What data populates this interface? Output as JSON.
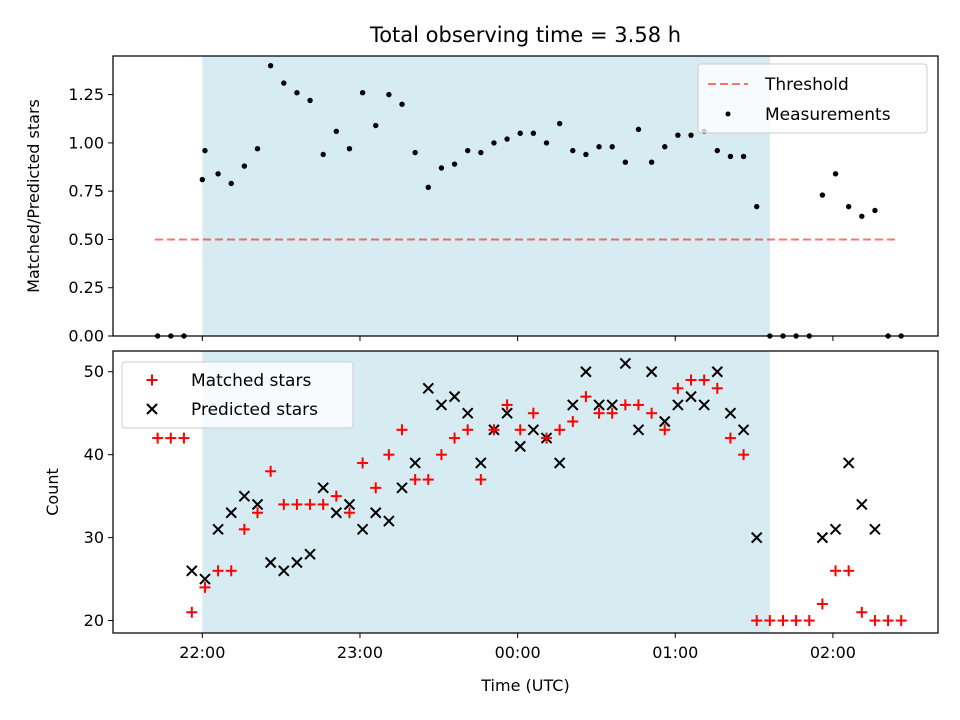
{
  "chart_data": [
    {
      "type": "scatter",
      "title": "Total observing time = 3.58 h",
      "xlabel": "",
      "ylabel": "Matched/Predicted stars",
      "xlim": [
        "21:26",
        "02:40"
      ],
      "ylim": [
        0,
        1.45
      ],
      "yticks": [
        "0.00",
        "0.25",
        "0.50",
        "0.75",
        "1.00",
        "1.25"
      ],
      "shaded_interval": [
        "22:00",
        "01:36"
      ],
      "shade_color": "#add8e6",
      "legend_position": "upper right",
      "series": [
        {
          "name": "Threshold",
          "style": "dashed line",
          "color": "#ff0000",
          "x": [
            "21:42",
            "02:25"
          ],
          "y": [
            0.5,
            0.5
          ]
        },
        {
          "name": "Measurements",
          "style": "dots",
          "color": "#000000",
          "x": [
            "21:43",
            "21:48",
            "21:53",
            "22:00",
            "22:01",
            "22:06",
            "22:11",
            "22:16",
            "22:21",
            "22:26",
            "22:31",
            "22:36",
            "22:41",
            "22:46",
            "22:51",
            "22:56",
            "23:01",
            "23:06",
            "23:11",
            "23:16",
            "23:21",
            "23:26",
            "23:31",
            "23:36",
            "23:41",
            "23:46",
            "23:51",
            "23:56",
            "00:01",
            "00:06",
            "00:11",
            "00:16",
            "00:21",
            "00:26",
            "00:31",
            "00:36",
            "00:41",
            "00:46",
            "00:51",
            "00:56",
            "01:01",
            "01:06",
            "01:11",
            "01:16",
            "01:21",
            "01:26",
            "01:31",
            "01:36",
            "01:41",
            "01:46",
            "01:51",
            "01:56",
            "02:01",
            "02:06",
            "02:11",
            "02:16",
            "02:21",
            "02:26"
          ],
          "y": [
            0.0,
            0.0,
            0.0,
            0.81,
            0.96,
            0.84,
            0.79,
            0.88,
            0.97,
            1.4,
            1.31,
            1.26,
            1.22,
            0.94,
            1.06,
            0.97,
            1.26,
            1.09,
            1.25,
            1.2,
            0.95,
            0.77,
            0.87,
            0.89,
            0.96,
            0.95,
            1.0,
            1.02,
            1.05,
            1.05,
            1.0,
            1.1,
            0.96,
            0.94,
            0.98,
            0.98,
            0.9,
            1.07,
            0.9,
            0.98,
            1.04,
            1.04,
            1.06,
            0.96,
            0.93,
            0.93,
            0.67,
            0.0,
            0.0,
            0.0,
            0.0,
            0.73,
            0.84,
            0.67,
            0.62,
            0.65,
            0.0,
            0.0
          ]
        }
      ]
    },
    {
      "type": "scatter",
      "title": "",
      "xlabel": "Time (UTC)",
      "ylabel": "Count",
      "xlim": [
        "21:26",
        "02:40"
      ],
      "ylim": [
        18.5,
        52.5
      ],
      "xticks": [
        "22:00",
        "23:00",
        "00:00",
        "01:00",
        "02:00"
      ],
      "yticks": [
        "20",
        "30",
        "40",
        "50"
      ],
      "shaded_interval": [
        "22:00",
        "01:36"
      ],
      "shade_color": "#add8e6",
      "legend_position": "upper left",
      "series": [
        {
          "name": "Matched stars",
          "marker": "+",
          "color": "#ff0000",
          "x": [
            "21:43",
            "21:48",
            "21:53",
            "21:56",
            "22:01",
            "22:06",
            "22:11",
            "22:16",
            "22:21",
            "22:26",
            "22:31",
            "22:36",
            "22:41",
            "22:46",
            "22:51",
            "22:56",
            "23:01",
            "23:06",
            "23:11",
            "23:16",
            "23:21",
            "23:26",
            "23:31",
            "23:36",
            "23:41",
            "23:46",
            "23:51",
            "23:56",
            "00:01",
            "00:06",
            "00:11",
            "00:16",
            "00:21",
            "00:26",
            "00:31",
            "00:36",
            "00:41",
            "00:46",
            "00:51",
            "00:56",
            "01:01",
            "01:06",
            "01:11",
            "01:16",
            "01:21",
            "01:26",
            "01:31",
            "01:36",
            "01:41",
            "01:46",
            "01:51",
            "01:56",
            "02:01",
            "02:06",
            "02:11",
            "02:16",
            "02:21",
            "02:26"
          ],
          "y": [
            42,
            42,
            42,
            21,
            24,
            26,
            26,
            31,
            33,
            38,
            34,
            34,
            34,
            34,
            35,
            33,
            39,
            36,
            40,
            43,
            37,
            37,
            40,
            42,
            43,
            37,
            43,
            46,
            43,
            45,
            42,
            43,
            44,
            47,
            45,
            45,
            46,
            46,
            45,
            43,
            48,
            49,
            49,
            48,
            42,
            40,
            20,
            20,
            20,
            20,
            20,
            22,
            26,
            26,
            21,
            20,
            20,
            20
          ]
        },
        {
          "name": "Predicted stars",
          "marker": "x",
          "color": "#000000",
          "x": [
            "21:56",
            "22:01",
            "22:06",
            "22:11",
            "22:16",
            "22:21",
            "22:26",
            "22:31",
            "22:36",
            "22:41",
            "22:46",
            "22:51",
            "22:56",
            "23:01",
            "23:06",
            "23:11",
            "23:16",
            "23:21",
            "23:26",
            "23:31",
            "23:36",
            "23:41",
            "23:46",
            "23:51",
            "23:56",
            "00:01",
            "00:06",
            "00:11",
            "00:16",
            "00:21",
            "00:26",
            "00:31",
            "00:36",
            "00:41",
            "00:46",
            "00:51",
            "00:56",
            "01:01",
            "01:06",
            "01:11",
            "01:16",
            "01:21",
            "01:26",
            "01:31",
            "01:56",
            "02:01",
            "02:06",
            "02:11",
            "02:16"
          ],
          "y": [
            26,
            25,
            31,
            33,
            35,
            34,
            27,
            26,
            27,
            28,
            36,
            33,
            34,
            31,
            33,
            32,
            36,
            39,
            48,
            46,
            47,
            45,
            39,
            43,
            45,
            41,
            43,
            42,
            39,
            46,
            50,
            46,
            46,
            51,
            43,
            50,
            44,
            46,
            47,
            46,
            50,
            45,
            43,
            30,
            30,
            31,
            39,
            34,
            31
          ]
        }
      ]
    }
  ]
}
